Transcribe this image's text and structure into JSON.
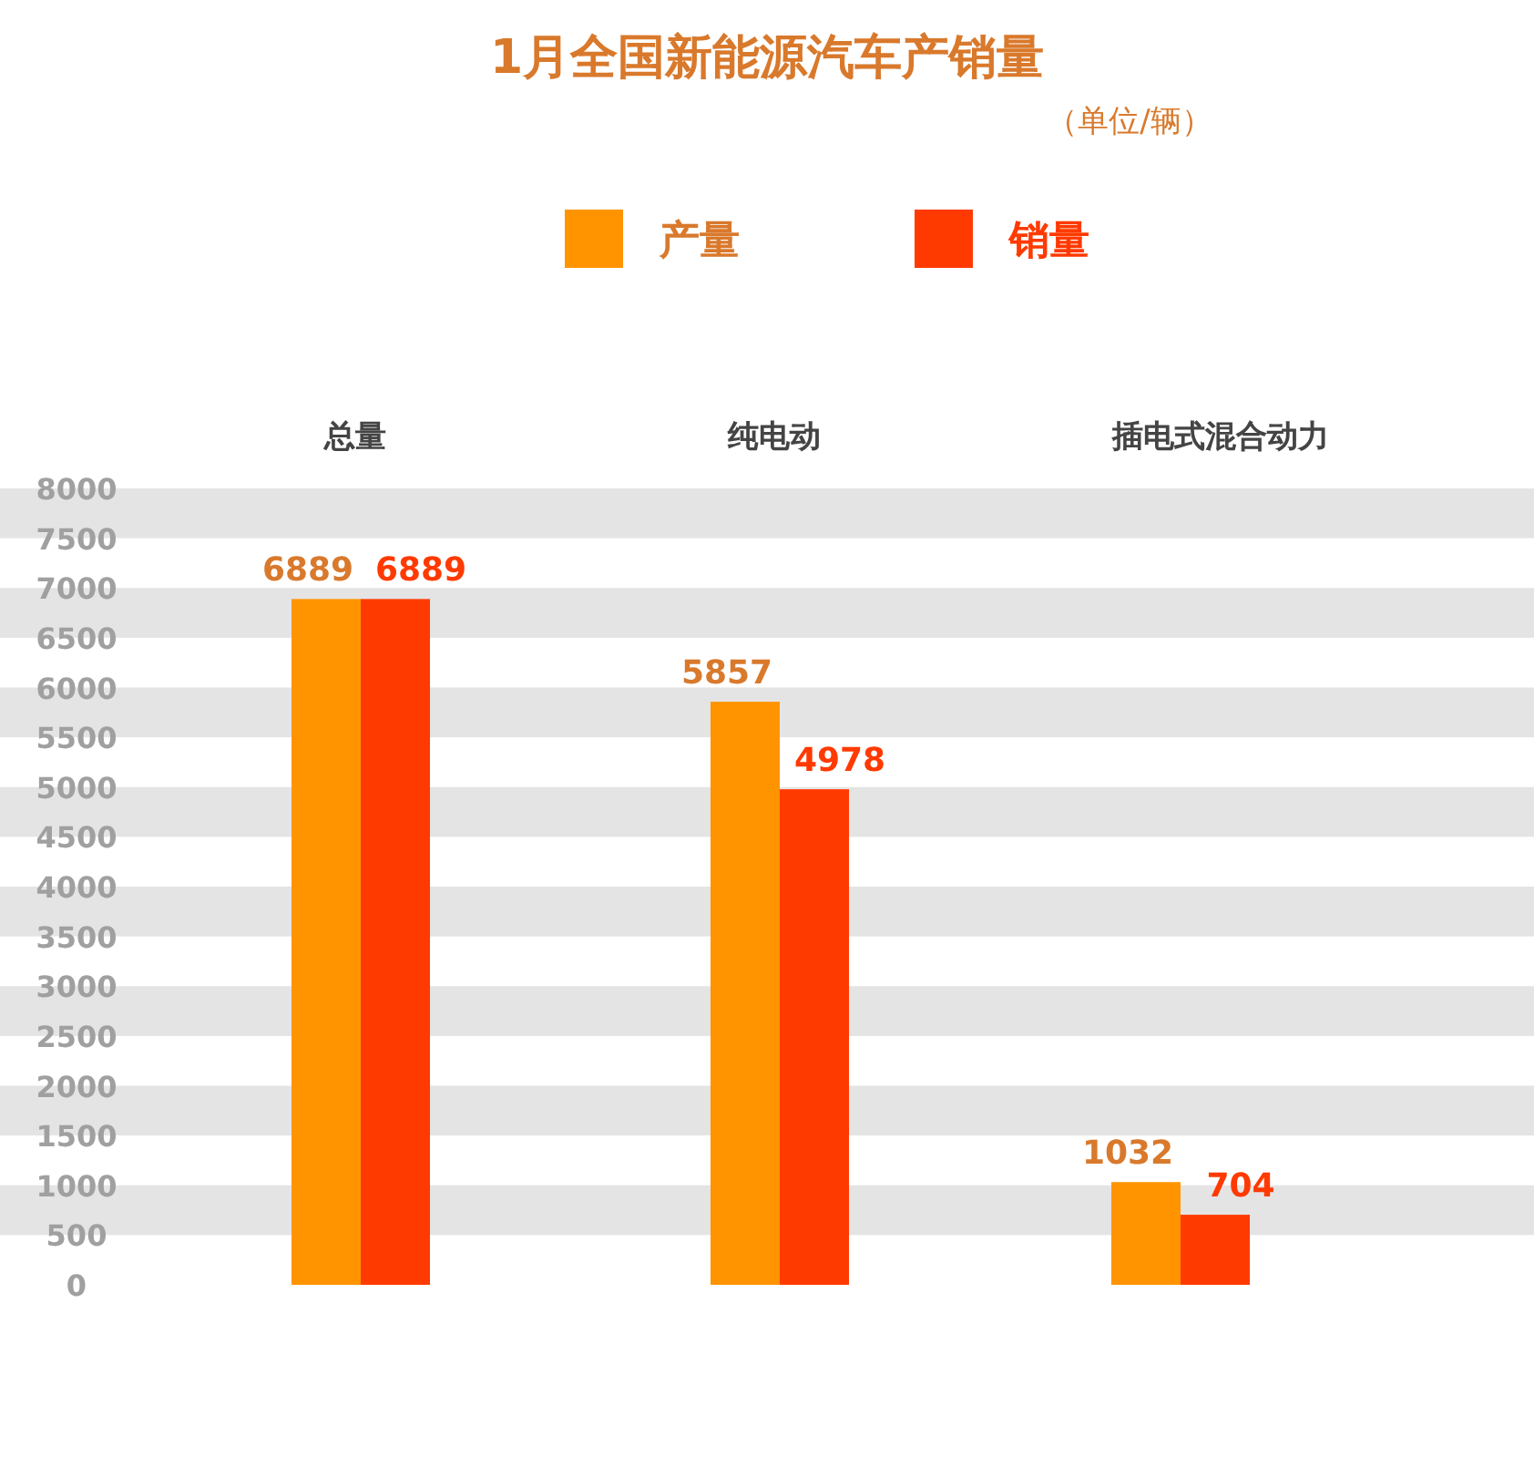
{
  "chart_data": {
    "type": "bar",
    "title": "1月全国新能源汽车产销量",
    "subtitle": "（单位/辆）",
    "categories": [
      "总量",
      "纯电动",
      "插电式混合动力"
    ],
    "series": [
      {
        "name": "产量",
        "color": "#ff9400",
        "values": [
          6889,
          5857,
          1032
        ]
      },
      {
        "name": "销量",
        "color": "#ff3a00",
        "values": [
          6889,
          4978,
          704
        ]
      }
    ],
    "ylim": [
      0,
      8000
    ],
    "yticks": [
      0,
      500,
      1000,
      1500,
      2000,
      2500,
      3000,
      3500,
      4000,
      4500,
      5000,
      5500,
      6000,
      6500,
      7000,
      7500,
      8000
    ],
    "bands": [
      {
        "axis": "y",
        "from": 500,
        "to": 1000,
        "color": "#e4e4e4"
      },
      {
        "axis": "y",
        "from": 1500,
        "to": 2000,
        "color": "#e4e4e4"
      },
      {
        "axis": "y",
        "from": 2500,
        "to": 3000,
        "color": "#e4e4e4"
      },
      {
        "axis": "y",
        "from": 3500,
        "to": 4000,
        "color": "#e4e4e4"
      },
      {
        "axis": "y",
        "from": 4500,
        "to": 5000,
        "color": "#e4e4e4"
      },
      {
        "axis": "y",
        "from": 5500,
        "to": 6000,
        "color": "#e4e4e4"
      },
      {
        "axis": "y",
        "from": 6500,
        "to": 7000,
        "color": "#e4e4e4"
      },
      {
        "axis": "y",
        "from": 7500,
        "to": 8000,
        "color": "#e4e4e4"
      }
    ],
    "legend": "top",
    "data_labels": true
  }
}
